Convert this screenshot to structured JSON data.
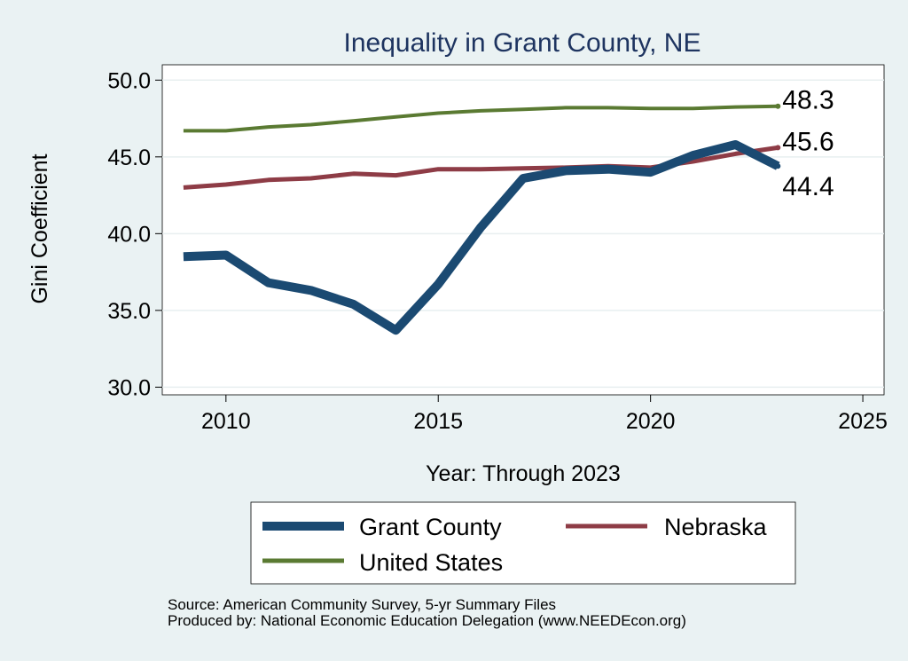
{
  "chart_data": {
    "type": "line",
    "title": "Inequality in Grant County, NE",
    "xlabel": "Year: Through 2023",
    "ylabel": "Gini Coefficient",
    "xlim": [
      2008.5,
      2025.5
    ],
    "ylim": [
      29.5,
      51
    ],
    "xticks": [
      2010,
      2015,
      2020,
      2025
    ],
    "yticks": [
      30,
      35,
      40,
      45,
      50
    ],
    "ytick_labels": [
      "30.0",
      "35.0",
      "40.0",
      "45.0",
      "50.0"
    ],
    "grid": "horizontal",
    "legend_position": "bottom",
    "x": [
      2009,
      2010,
      2011,
      2012,
      2013,
      2014,
      2015,
      2016,
      2017,
      2018,
      2019,
      2020,
      2021,
      2022,
      2023
    ],
    "series": [
      {
        "name": "Grant County",
        "color": "#1b4a72",
        "values": [
          38.5,
          38.6,
          36.8,
          36.3,
          35.4,
          33.7,
          36.7,
          40.4,
          43.6,
          44.1,
          44.2,
          44.0,
          45.1,
          45.8,
          44.4
        ],
        "end_label": "44.4"
      },
      {
        "name": "Nebraska",
        "color": "#8e3c46",
        "values": [
          43.0,
          43.2,
          43.5,
          43.6,
          43.9,
          43.8,
          44.2,
          44.2,
          44.25,
          44.3,
          44.4,
          44.3,
          44.7,
          45.2,
          45.6
        ],
        "end_label": "45.6"
      },
      {
        "name": "United States",
        "color": "#5a7a32",
        "values": [
          46.7,
          46.7,
          46.95,
          47.1,
          47.35,
          47.6,
          47.85,
          48.0,
          48.1,
          48.2,
          48.2,
          48.15,
          48.15,
          48.25,
          48.3
        ],
        "end_label": "48.3"
      }
    ]
  },
  "footer": {
    "source": "Source: American Community Survey, 5-yr Summary Files",
    "produced_by": "Produced by: National Economic Education Delegation (www.NEEDEcon.org)"
  }
}
